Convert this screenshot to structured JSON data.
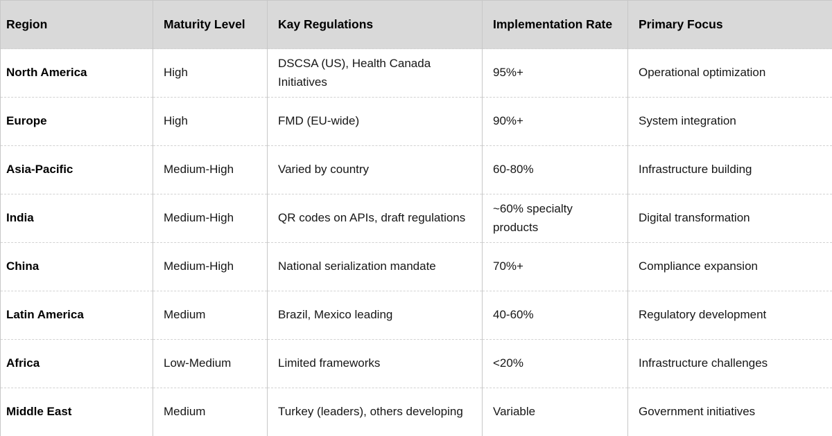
{
  "colors": {
    "header_bg": "#d9d9d9",
    "body_bg": "#ffffff",
    "border_solid": "#c7c7c7",
    "border_dashed": "#d2d2d2",
    "text": "#161616"
  },
  "chart_data": {
    "type": "table",
    "title": "",
    "columns": [
      "Region",
      "Maturity Level",
      "Kay Regulations",
      "Implementation Rate",
      "Primary Focus"
    ],
    "rows": [
      [
        "North America",
        "High",
        "DSCSA (US), Health Canada Initiatives",
        "95%+",
        "Operational optimization"
      ],
      [
        "Europe",
        "High",
        "FMD (EU-wide)",
        "90%+",
        "System integration"
      ],
      [
        "Asia-Pacific",
        "Medium-High",
        "Varied by country",
        "60-80%",
        "Infrastructure building"
      ],
      [
        "India",
        "Medium-High",
        "QR codes on APIs, draft regulations",
        "~60% specialty products",
        "Digital transformation"
      ],
      [
        "China",
        "Medium-High",
        "National serialization mandate",
        "70%+",
        "Compliance expansion"
      ],
      [
        "Latin America",
        "Medium",
        "Brazil, Mexico leading",
        "40-60%",
        "Regulatory development"
      ],
      [
        "Africa",
        "Low-Medium",
        "Limited frameworks",
        "<20%",
        "Infrastructure challenges"
      ],
      [
        "Middle East",
        "Medium",
        "Turkey (leaders), others developing",
        "Variable",
        "Government initiatives"
      ]
    ]
  }
}
